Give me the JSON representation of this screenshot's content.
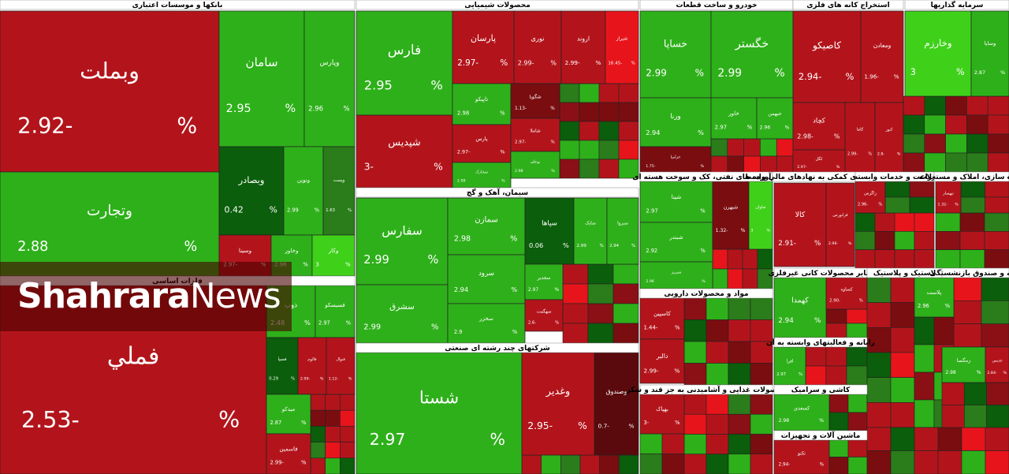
{
  "watermark": {
    "brand": "Shahrara",
    "suffix": "News"
  },
  "percent_sign": "%",
  "sectors": [
    {
      "title": "بانکها و موسسات اعتباری",
      "tiles": [
        {
          "name": "وبملت",
          "change": "2.92-",
          "color": "#b3141b"
        },
        {
          "name": "وتجارت",
          "change": "2.88",
          "color": "#2eb01a"
        },
        {
          "name": "سامان",
          "change": "2.95",
          "color": "#2eb01a"
        },
        {
          "name": "وپارس",
          "change": "2.96",
          "color": "#2eb01a"
        },
        {
          "name": "وبصادر",
          "change": "0.42",
          "color": "#0b5e0b"
        },
        {
          "name": "ونوین",
          "change": "2.99",
          "color": "#2eb01a"
        },
        {
          "name": "وپست",
          "change": "1.63",
          "color": "#2a7d1a"
        },
        {
          "name": "وسینا",
          "change": "2.97-",
          "color": "#b3141b"
        },
        {
          "name": "وخاور",
          "change": "2.96",
          "color": "#2eb01a"
        },
        {
          "name": "وکار",
          "change": "3",
          "color": "#3fd11a"
        }
      ]
    },
    {
      "title": "فلزات اساسی",
      "tiles": [
        {
          "name": "فملي",
          "change": "2.53-",
          "color": "#b3141b"
        },
        {
          "name": "ذوب",
          "change": "2.48",
          "color": "#2eb01a"
        },
        {
          "name": "فسیسکو",
          "change": "2.97",
          "color": "#2eb01a"
        },
        {
          "name": "فسپا",
          "change": "0.29",
          "color": "#0b5e0b"
        },
        {
          "name": "فالوم",
          "change": "2.99-",
          "color": "#b3141b"
        },
        {
          "name": "فنوال",
          "change": "1.12-",
          "color": "#b3141b"
        },
        {
          "name": "میدکو",
          "change": "2.87",
          "color": "#2eb01a"
        },
        {
          "name": "فاسمین",
          "change": "2.99-",
          "color": "#b3141b"
        }
      ]
    },
    {
      "title": "محصولات شیمیایی",
      "tiles": [
        {
          "name": "فارس",
          "change": "2.95",
          "color": "#2eb01a"
        },
        {
          "name": "شپدیس",
          "change": "3-",
          "color": "#b3141b"
        },
        {
          "name": "پارسان",
          "change": "2.97-",
          "color": "#b3141b"
        },
        {
          "name": "نوری",
          "change": "2.99-",
          "color": "#b3141b"
        },
        {
          "name": "اروند",
          "change": "2.99-",
          "color": "#b3141b"
        },
        {
          "name": "شیراز",
          "change": "16.45-",
          "color": "#e8141b"
        },
        {
          "name": "تاپیکو",
          "change": "2.98",
          "color": "#2eb01a"
        },
        {
          "name": "پارس",
          "change": "2.97-",
          "color": "#b3141b"
        },
        {
          "name": "شخارک",
          "change": "2.99",
          "color": "#2eb01a"
        },
        {
          "name": "شگویا",
          "change": "1.13-",
          "color": "#7a0d10"
        },
        {
          "name": "شاملا",
          "change": "2.97-",
          "color": "#b3141b"
        },
        {
          "name": "بوعلی",
          "change": "2.98",
          "color": "#2eb01a"
        }
      ]
    },
    {
      "title": "سیمان، آهک و گچ",
      "tiles": [
        {
          "name": "سفارس",
          "change": "2.99",
          "color": "#2eb01a"
        },
        {
          "name": "سشرق",
          "change": "2.99",
          "color": "#2eb01a"
        },
        {
          "name": "سمازن",
          "change": "2.98",
          "color": "#2eb01a"
        },
        {
          "name": "سرود",
          "change": "2.94",
          "color": "#2eb01a"
        },
        {
          "name": "سخزر",
          "change": "2.9",
          "color": "#2eb01a"
        },
        {
          "name": "سپاها",
          "change": "0.06",
          "color": "#0b5e0b"
        },
        {
          "name": "سایک",
          "change": "2.99",
          "color": "#2eb01a"
        },
        {
          "name": "سبزوا",
          "change": "2.94",
          "color": "#2eb01a"
        },
        {
          "name": "سغدیر",
          "change": "2.97",
          "color": "#2eb01a"
        },
        {
          "name": "سهگمت",
          "change": "2.6-",
          "color": "#b3141b"
        }
      ]
    },
    {
      "title": "شرکتهای چند رشته ای صنعتی",
      "tiles": [
        {
          "name": "شستا",
          "change": "2.97",
          "color": "#2eb01a"
        },
        {
          "name": "وغدیر",
          "change": "2.95-",
          "color": "#b3141b"
        },
        {
          "name": "وصندوق",
          "change": "0.7-",
          "color": "#5a0a0c"
        }
      ]
    },
    {
      "title": "خودرو و ساخت قطعات",
      "tiles": [
        {
          "name": "خساپا",
          "change": "2.99",
          "color": "#2eb01a"
        },
        {
          "name": "خگستر",
          "change": "2.99",
          "color": "#2eb01a"
        },
        {
          "name": "ورنا",
          "change": "2.94",
          "color": "#2eb01a"
        },
        {
          "name": "خاور",
          "change": "2.97",
          "color": "#2eb01a"
        },
        {
          "name": "خبهمن",
          "change": "2.96",
          "color": "#2eb01a"
        },
        {
          "name": "خزامیا",
          "change": "1.75-",
          "color": "#7a0d10"
        }
      ]
    },
    {
      "title": "استخراج کانه های فلزی",
      "tiles": [
        {
          "name": "کاصیکو",
          "change": "2.94-",
          "color": "#b3141b"
        },
        {
          "name": "ومعادن",
          "change": "1.96-",
          "color": "#b3141b"
        },
        {
          "name": "کچاد",
          "change": "2.98-",
          "color": "#b3141b"
        },
        {
          "name": "کاما",
          "change": "2.99-",
          "color": "#b3141b"
        },
        {
          "name": "کنور",
          "change": "2.8-",
          "color": "#b3141b"
        },
        {
          "name": "کگل",
          "change": "2.97-",
          "color": "#b3141b"
        }
      ]
    },
    {
      "title": "سرمایه گذاریها",
      "tiles": [
        {
          "name": "وخارزم",
          "change": "3",
          "color": "#3fd11a"
        },
        {
          "name": "وسایا",
          "change": "2.87",
          "color": "#2eb01a"
        }
      ]
    },
    {
      "title": "فرآورده های نفتی، کک و سوخت هسته ای",
      "tiles": [
        {
          "name": "شپنا",
          "change": "2.97",
          "color": "#2eb01a"
        },
        {
          "name": "شبندر",
          "change": "2.92",
          "color": "#2eb01a"
        },
        {
          "name": "شبریز",
          "change": "2.96",
          "color": "#2eb01a"
        },
        {
          "name": "شبهرن",
          "change": "1.32-",
          "color": "#7a0d10"
        },
        {
          "name": "شاوان",
          "change": "3",
          "color": "#3fd11a"
        }
      ]
    },
    {
      "title": "مواد و محصولات دارویی",
      "tiles": [
        {
          "name": "کاسپین",
          "change": "1.44-",
          "color": "#b3141b"
        },
        {
          "name": "دالبر",
          "change": "2.99-",
          "color": "#b3141b"
        }
      ]
    },
    {
      "title": "محصولات غذایی و آشامیدنی به جز قند و شکر",
      "tiles": [
        {
          "name": "بهپاک",
          "change": "3-",
          "color": "#b3141b"
        }
      ]
    },
    {
      "title": "فعالیتهای کمکی به نهادهای مالی واسط",
      "tiles": [
        {
          "name": "کالا",
          "change": "2.91-",
          "color": "#b3141b"
        },
        {
          "name": "فرابورس",
          "change": "2.96-",
          "color": "#b3141b"
        }
      ]
    },
    {
      "title": "زراعت و خدمات وابسته",
      "tiles": [
        {
          "name": "زاگرس",
          "change": "2.96-",
          "color": "#b3141b"
        }
      ]
    },
    {
      "title": "انبوه سازی، املاک و مستغلات",
      "tiles": [
        {
          "name": "ثبهساز",
          "change": "1.32-",
          "color": "#b3141b"
        }
      ]
    },
    {
      "title": "سایر محصولات کانی غیرفلزی",
      "tiles": [
        {
          "name": "کهمدا",
          "change": "2.94",
          "color": "#2eb01a"
        },
        {
          "name": "کساوه",
          "change": "2.90-",
          "color": "#b3141b"
        }
      ]
    },
    {
      "title": "رایانه و فعالیتهای وابسته به آن",
      "tiles": [
        {
          "name": "افرا",
          "change": "2.97",
          "color": "#2eb01a"
        }
      ]
    },
    {
      "title": "کاشی و سرامیک",
      "tiles": [
        {
          "name": "کسعدی",
          "change": "2.98",
          "color": "#2eb01a"
        }
      ]
    },
    {
      "title": "ماشین آلات و تجهیزات",
      "tiles": [
        {
          "name": "تکنو",
          "change": "2.94-",
          "color": "#b3141b"
        }
      ]
    },
    {
      "title": "لاستیک و پلاستیک",
      "tiles": [
        {
          "name": "پلاست",
          "change": "2.96",
          "color": "#2eb01a"
        }
      ]
    },
    {
      "title": "بیمه و صندوق بازنشستگی",
      "tiles": [
        {
          "name": "زمگسا",
          "change": "2.98",
          "color": "#2eb01a"
        },
        {
          "name": "غدیس",
          "change": "2.84-",
          "color": "#b3141b"
        }
      ]
    }
  ]
}
